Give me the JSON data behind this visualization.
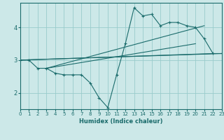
{
  "xlabel": "Humidex (Indice chaleur)",
  "bg_color": "#cce8e8",
  "line_color": "#1a6b6b",
  "grid_color": "#99cccc",
  "zigzag": {
    "x": [
      0,
      1,
      2,
      3,
      4,
      5,
      6,
      7,
      8,
      9,
      10,
      11,
      12,
      13,
      14,
      15,
      16,
      17,
      18,
      19,
      20,
      21,
      22,
      23
    ],
    "y": [
      3.0,
      3.0,
      2.75,
      2.75,
      2.6,
      2.55,
      2.55,
      2.55,
      2.3,
      1.85,
      1.55,
      2.55,
      3.5,
      4.6,
      4.35,
      4.4,
      4.05,
      4.15,
      4.15,
      4.05,
      4.0,
      3.65,
      3.2,
      3.2
    ]
  },
  "straight_lines": [
    {
      "x": [
        0,
        23
      ],
      "y": [
        3.0,
        3.2
      ]
    },
    {
      "x": [
        0,
        22
      ],
      "y": [
        3.0,
        3.2
      ]
    },
    {
      "x": [
        3,
        21
      ],
      "y": [
        2.75,
        4.05
      ]
    },
    {
      "x": [
        3,
        20
      ],
      "y": [
        2.75,
        3.5
      ]
    }
  ],
  "xlim": [
    0,
    23
  ],
  "ylim": [
    1.5,
    4.75
  ],
  "yticks": [
    2,
    3,
    4
  ],
  "xticks": [
    0,
    1,
    2,
    3,
    4,
    5,
    6,
    7,
    8,
    9,
    10,
    11,
    12,
    13,
    14,
    15,
    16,
    17,
    18,
    19,
    20,
    21,
    22,
    23
  ]
}
